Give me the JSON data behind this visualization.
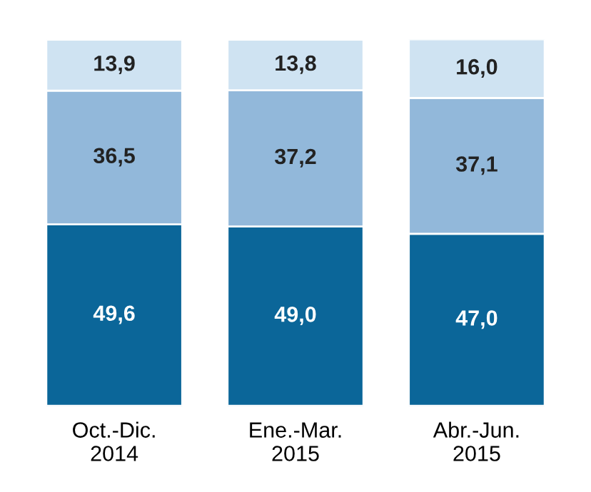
{
  "chart_data": {
    "type": "bar",
    "stacked": true,
    "categories": [
      "Oct.-Dic.\n2014",
      "Ene.-Mar.\n2015",
      "Abr.-Jun.\n2015"
    ],
    "series": [
      {
        "color": "#0b6699",
        "values": [
          49.6,
          49.0,
          47.0
        ],
        "value_labels": [
          "49,6",
          "49,0",
          "47,0"
        ]
      },
      {
        "color": "#92b8da",
        "values": [
          36.5,
          37.2,
          37.1
        ],
        "value_labels": [
          "36,5",
          "37,2",
          "37,1"
        ]
      },
      {
        "color": "#cfe3f2",
        "values": [
          13.9,
          13.8,
          16.0
        ],
        "value_labels": [
          "13,9",
          "13,8",
          "16,0"
        ]
      }
    ],
    "legend": false,
    "grid": false
  }
}
